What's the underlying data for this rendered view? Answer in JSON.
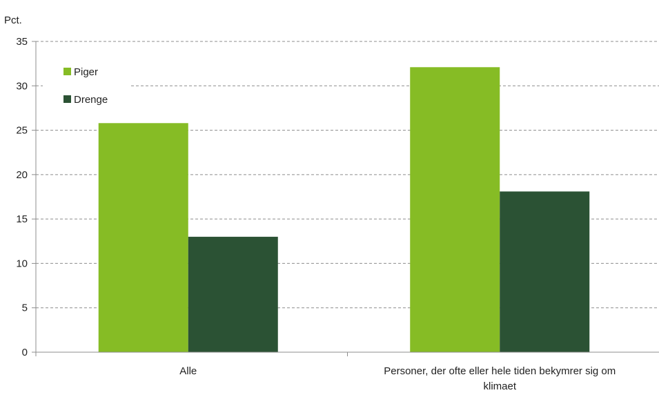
{
  "chart_data": {
    "type": "bar",
    "unit_label": "Pct.",
    "categories": [
      [
        "Alle"
      ],
      [
        "Personer, der ofte eller hele tiden bekymrer sig om",
        "klimaet"
      ]
    ],
    "series": [
      {
        "name": "Piger",
        "color": "#86bc25",
        "values": [
          25.8,
          32.1
        ]
      },
      {
        "name": "Drenge",
        "color": "#2b5234",
        "values": [
          13.0,
          18.1
        ]
      }
    ],
    "ylim": [
      0,
      35
    ],
    "yticks": [
      0,
      5,
      10,
      15,
      20,
      25,
      30,
      35
    ],
    "grid": true,
    "legend_position": "top-left"
  }
}
